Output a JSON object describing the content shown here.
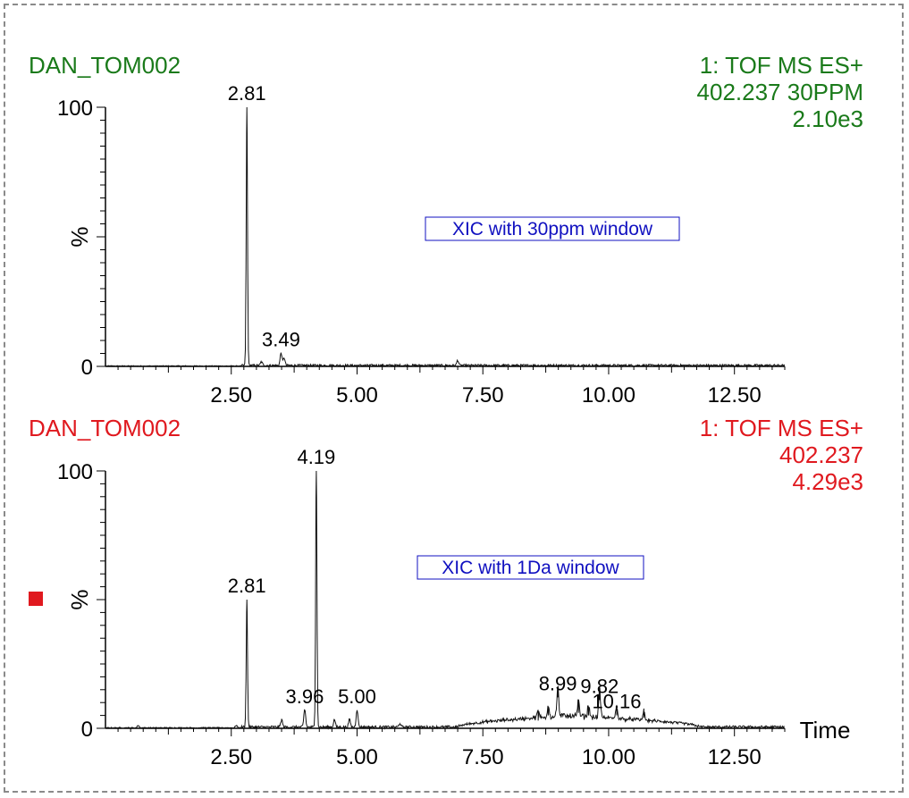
{
  "colors": {
    "top_header": "#1a7a1a",
    "bottom_header": "#e0191f",
    "annotation_text": "#1010c0",
    "trace": "#111111",
    "frame": "#8a8a8a"
  },
  "chart_data": [
    {
      "type": "line",
      "sample_name": "DAN_TOM002",
      "header_lines": [
        "1: TOF MS ES+",
        "402.237 30PPM",
        "2.10e3"
      ],
      "annotation": "XIC with 30ppm window",
      "ylabel": "%",
      "xlabel": "",
      "xlim": [
        0.0,
        13.5
      ],
      "ylim": [
        0,
        100
      ],
      "x_ticks": [
        "2.50",
        "5.00",
        "7.50",
        "10.00",
        "12.50"
      ],
      "y_tick_labels": [
        "0",
        "100"
      ],
      "peak_labels": [
        {
          "x": 2.81,
          "label": "2.81",
          "y": 100
        },
        {
          "x": 3.49,
          "label": "3.49",
          "y": 5
        }
      ],
      "peaks": [
        {
          "x": 2.81,
          "y": 100
        },
        {
          "x": 3.49,
          "y": 5
        },
        {
          "x": 3.55,
          "y": 3
        },
        {
          "x": 3.1,
          "y": 1.5
        },
        {
          "x": 7.0,
          "y": 2
        }
      ],
      "baseline_noise": 0.8
    },
    {
      "type": "line",
      "sample_name": "DAN_TOM002",
      "header_lines": [
        "1: TOF MS ES+",
        "402.237",
        "4.29e3"
      ],
      "annotation": "XIC with 1Da window",
      "ylabel": "%",
      "xlabel": "Time",
      "xlim": [
        0.0,
        13.5
      ],
      "ylim": [
        0,
        100
      ],
      "x_ticks": [
        "2.50",
        "5.00",
        "7.50",
        "10.00",
        "12.50"
      ],
      "y_tick_labels": [
        "0",
        "100"
      ],
      "peak_labels": [
        {
          "x": 2.81,
          "label": "2.81",
          "y": 50
        },
        {
          "x": 3.96,
          "label": "3.96",
          "y": 7
        },
        {
          "x": 4.19,
          "label": "4.19",
          "y": 100
        },
        {
          "x": 5.0,
          "label": "5.00",
          "y": 7
        },
        {
          "x": 8.99,
          "label": "8.99",
          "y": 12
        },
        {
          "x": 9.82,
          "label": "9.82",
          "y": 11
        },
        {
          "x": 10.16,
          "label": "10.16",
          "y": 5
        }
      ],
      "peaks": [
        {
          "x": 0.65,
          "y": 1
        },
        {
          "x": 2.6,
          "y": 1
        },
        {
          "x": 2.81,
          "y": 50
        },
        {
          "x": 3.5,
          "y": 3
        },
        {
          "x": 3.96,
          "y": 7
        },
        {
          "x": 4.19,
          "y": 100
        },
        {
          "x": 4.55,
          "y": 3
        },
        {
          "x": 4.85,
          "y": 3
        },
        {
          "x": 5.0,
          "y": 7
        },
        {
          "x": 5.85,
          "y": 1.5
        },
        {
          "x": 8.6,
          "y": 3
        },
        {
          "x": 8.8,
          "y": 5
        },
        {
          "x": 8.99,
          "y": 12
        },
        {
          "x": 9.4,
          "y": 6
        },
        {
          "x": 9.6,
          "y": 5
        },
        {
          "x": 9.82,
          "y": 11
        },
        {
          "x": 10.16,
          "y": 5
        },
        {
          "x": 10.7,
          "y": 4
        }
      ],
      "hump": {
        "start": 7.0,
        "peak": 9.2,
        "end": 11.8,
        "height": 3.5
      },
      "baseline_noise": 1.0
    }
  ]
}
